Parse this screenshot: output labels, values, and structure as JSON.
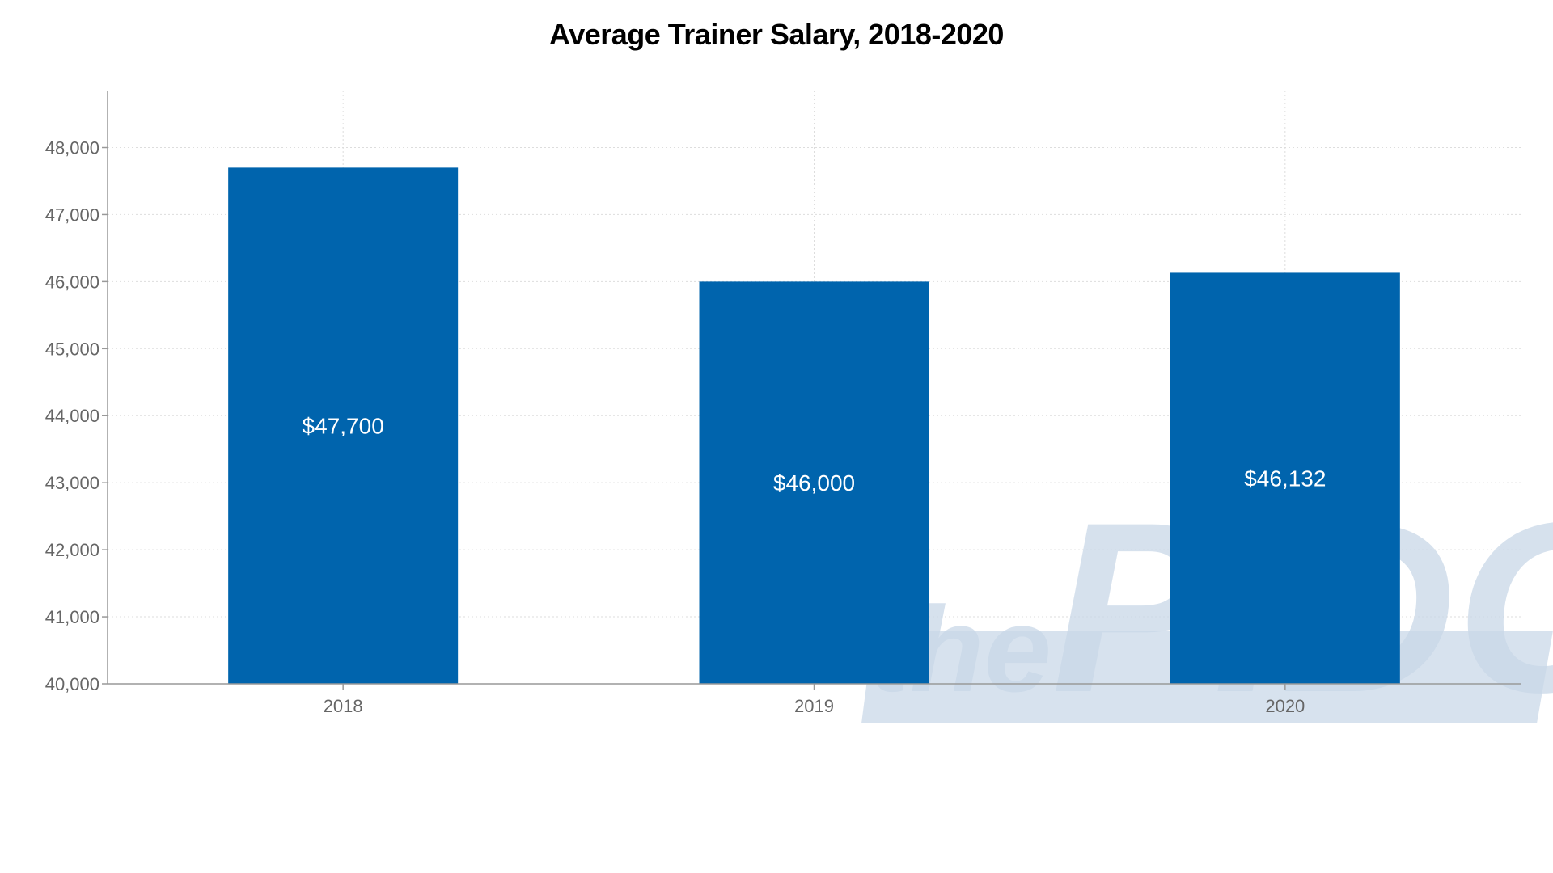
{
  "chart_data": {
    "type": "bar",
    "title": "Average Trainer Salary, 2018-2020",
    "categories": [
      "2018",
      "2019",
      "2020"
    ],
    "values": [
      47700,
      46000,
      46132
    ],
    "data_labels": [
      "$47,700",
      "$46,000",
      "$46,132"
    ],
    "ylim": [
      40000,
      48850
    ],
    "yticks": [
      40000,
      41000,
      42000,
      43000,
      44000,
      45000,
      46000,
      47000,
      48000
    ],
    "ytick_labels": [
      "40,000",
      "41,000",
      "42,000",
      "43,000",
      "44,000",
      "45,000",
      "46,000",
      "47,000",
      "48,000"
    ],
    "xlabel": "",
    "ylabel": "",
    "grid": true,
    "bar_color": "#0064ad"
  },
  "watermark": {
    "text_small": "the",
    "text_large": "PIDC",
    "color": "#c9d8e8"
  }
}
